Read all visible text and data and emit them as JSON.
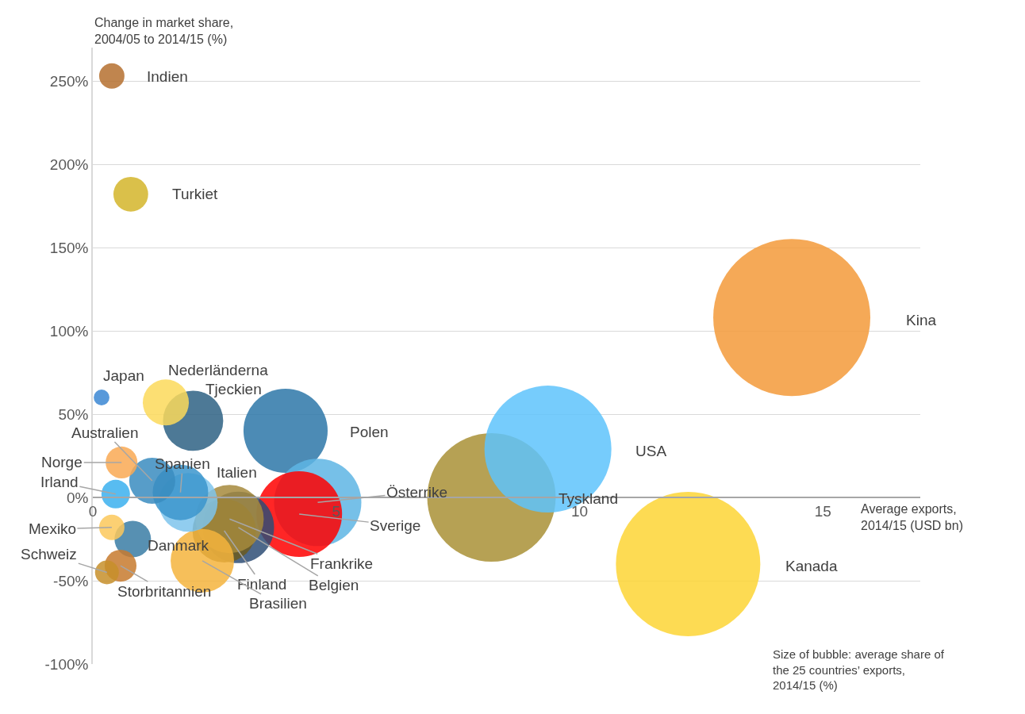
{
  "chart_data": {
    "type": "bubble",
    "ylabel": "Change in market share,\n2004/05 to 2014/15 (%)",
    "xlabel": "Average exports,\n2014/15 (USD bn)",
    "annotations": [
      "Size of bubble: average share of\nthe 25 countries’ exports,\n2014/15 (%)"
    ],
    "xlim": [
      0,
      17
    ],
    "xticks": [
      0,
      5,
      10,
      15
    ],
    "ylim": [
      -100,
      270
    ],
    "yticks": [
      {
        "value": -100,
        "label": "-100%"
      },
      {
        "value": -50,
        "label": "-50%"
      },
      {
        "value": 0,
        "label": "0%"
      },
      {
        "value": 50,
        "label": "50%"
      },
      {
        "value": 100,
        "label": "100%"
      },
      {
        "value": 150,
        "label": "150%"
      },
      {
        "value": 200,
        "label": "200%"
      },
      {
        "value": 250,
        "label": "250%"
      }
    ],
    "grid": "y",
    "series": [
      {
        "name": "Kina",
        "color": "#f39a3a",
        "x": [
          14.36
        ],
        "values": [
          108
        ],
        "sizes": [
          1
        ]
      },
      {
        "name": "Kanada",
        "color": "#fdd535",
        "x": [
          12.23
        ],
        "values": [
          -40
        ],
        "sizes": [
          0.845
        ]
      },
      {
        "name": "Tyskland",
        "color": "#a99036",
        "x": [
          8.19
        ],
        "values": [
          0
        ],
        "sizes": [
          0.669
        ]
      },
      {
        "name": "USA",
        "color": "#5ec3fb",
        "x": [
          9.35
        ],
        "values": [
          29
        ],
        "sizes": [
          0.653
        ]
      },
      {
        "name": "Polen",
        "color": "#2d77a8",
        "x": [
          3.96
        ],
        "values": [
          40
        ],
        "sizes": [
          0.287
        ]
      },
      {
        "name": "Tjeckien",
        "color": "#2e6184",
        "x": [
          2.06
        ],
        "values": [
          46
        ],
        "sizes": [
          0.147
        ]
      },
      {
        "name": "Nederländerna",
        "color": "#fcd95a",
        "x": [
          1.5
        ],
        "values": [
          57
        ],
        "sizes": [
          0.086
        ]
      },
      {
        "name": "Österrike",
        "color": "#5eb5e4",
        "x": [
          4.62
        ],
        "values": [
          -3
        ],
        "sizes": [
          0.309
        ]
      },
      {
        "name": "Sverige",
        "color": "#ff0000",
        "x": [
          4.24
        ],
        "values": [
          -10
        ],
        "sizes": [
          0.298
        ]
      },
      {
        "name": "Belgien",
        "color": "#2e4e75",
        "x": [
          2.99
        ],
        "values": [
          -18
        ],
        "sizes": [
          0.207
        ]
      },
      {
        "name": "Finland",
        "color": "#6b5a1e",
        "x": [
          2.7
        ],
        "values": [
          -20
        ],
        "sizes": [
          0.163
        ]
      },
      {
        "name": "Frankrike",
        "color": "#a68a3c",
        "x": [
          2.81
        ],
        "values": [
          -13
        ],
        "sizes": [
          0.189
        ]
      },
      {
        "name": "Brasilien",
        "color": "#f5b43d",
        "x": [
          2.25
        ],
        "values": [
          -38
        ],
        "sizes": [
          0.163
        ]
      },
      {
        "name": "Italien",
        "color": "#7ec4ec",
        "x": [
          1.96
        ],
        "values": [
          -3
        ],
        "sizes": [
          0.14
        ]
      },
      {
        "name": "Spanien",
        "color": "#3b95cc",
        "x": [
          1.8
        ],
        "values": [
          3
        ],
        "sizes": [
          0.125
        ]
      },
      {
        "name": "Australien",
        "color": "#3a8cc0",
        "x": [
          1.22
        ],
        "values": [
          10
        ],
        "sizes": [
          0.086
        ]
      },
      {
        "name": "Danmark",
        "color": "#3a7ca5",
        "x": [
          0.82
        ],
        "values": [
          -25
        ],
        "sizes": [
          0.054
        ]
      },
      {
        "name": "Norge",
        "color": "#f9a953",
        "x": [
          0.59
        ],
        "values": [
          21
        ],
        "sizes": [
          0.041
        ]
      },
      {
        "name": "Irland",
        "color": "#3bb0ef",
        "x": [
          0.47
        ],
        "values": [
          2
        ],
        "sizes": [
          0.033
        ]
      },
      {
        "name": "Mexiko",
        "color": "#fbc85a",
        "x": [
          0.39
        ],
        "values": [
          -18
        ],
        "sizes": [
          0.026
        ]
      },
      {
        "name": "Storbritannien",
        "color": "#c77a2e",
        "x": [
          0.57
        ],
        "values": [
          -41
        ],
        "sizes": [
          0.041
        ]
      },
      {
        "name": "Schweiz",
        "color": "#c78f2a",
        "x": [
          0.29
        ],
        "values": [
          -45
        ],
        "sizes": [
          0.023
        ]
      },
      {
        "name": "Japan",
        "color": "#3b87d4",
        "x": [
          0.18
        ],
        "values": [
          60
        ],
        "sizes": [
          0.01
        ]
      },
      {
        "name": "Indien",
        "color": "#b5702f",
        "x": [
          0.39
        ],
        "values": [
          253
        ],
        "sizes": [
          0.026
        ]
      },
      {
        "name": "Turkiet",
        "color": "#d4b52a",
        "x": [
          0.78
        ],
        "values": [
          182
        ],
        "sizes": [
          0.049
        ]
      }
    ]
  }
}
